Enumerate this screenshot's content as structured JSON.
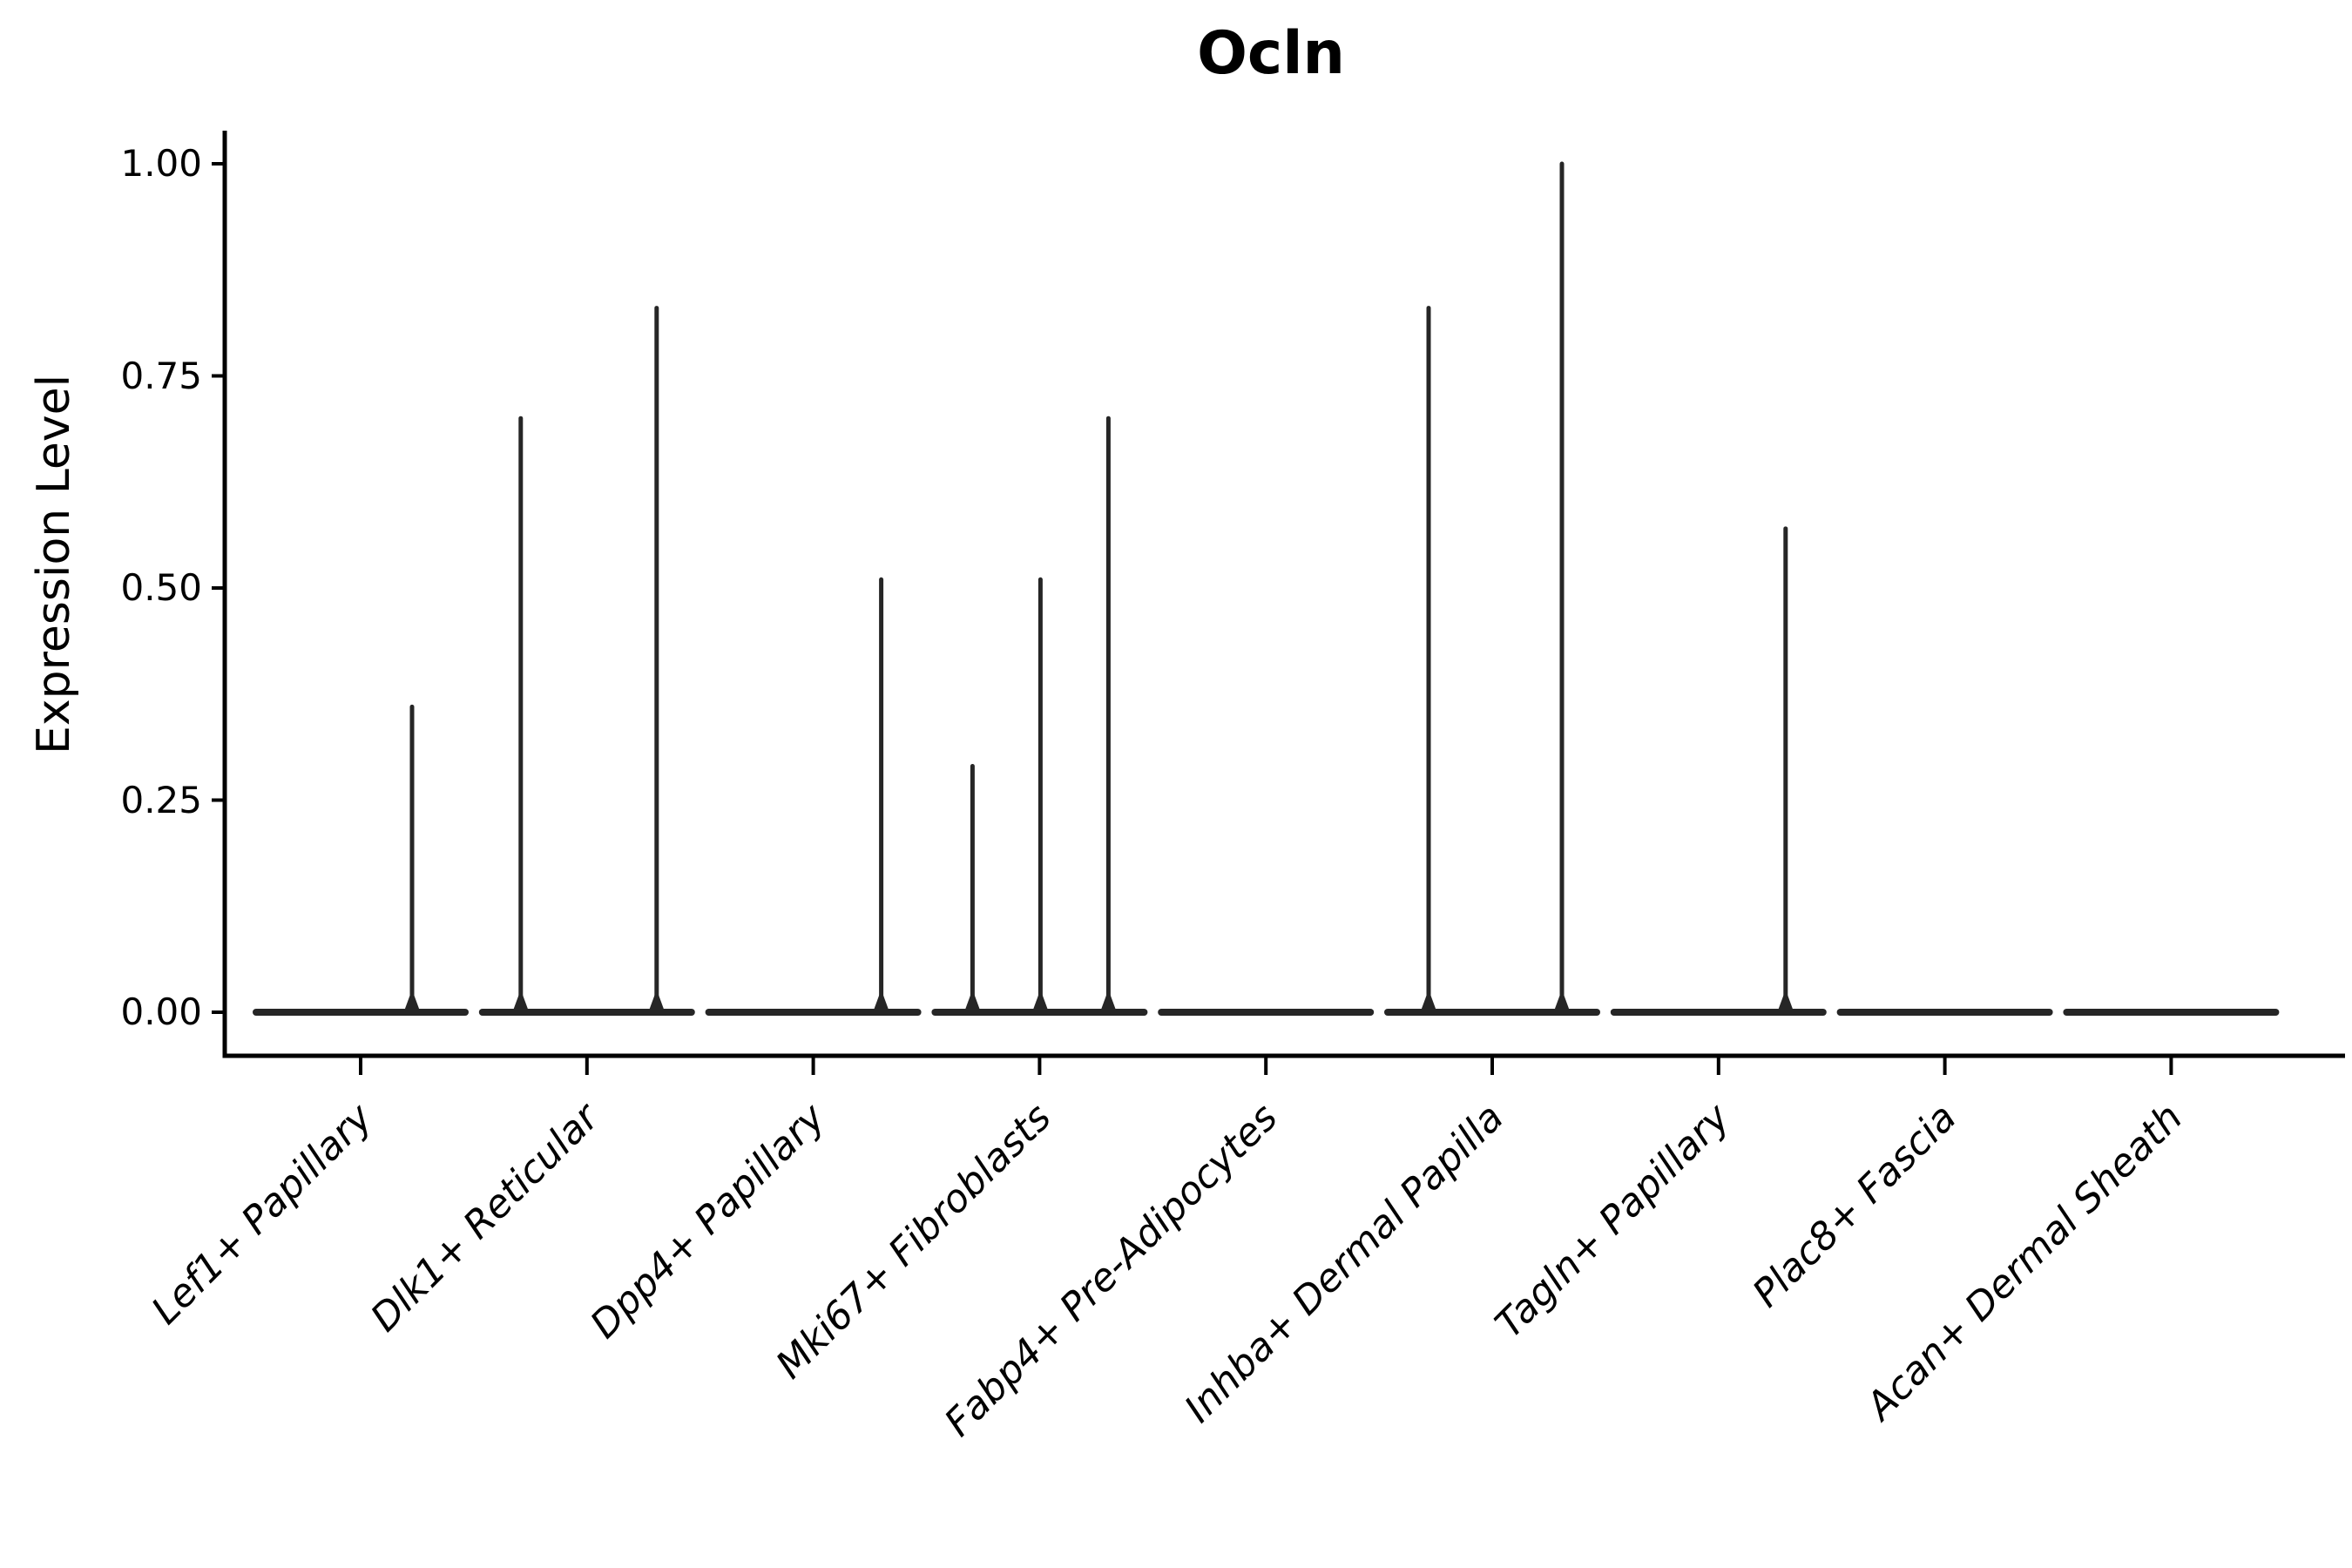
{
  "figure": {
    "background": "#ffffff"
  },
  "chart_data": {
    "type": "violin",
    "title": "Ocln",
    "ylabel": "Expression Level",
    "xlabel": "",
    "ylim": [
      0,
      1.05
    ],
    "grid": false,
    "legend": null,
    "colors": {
      "violin": "#262626",
      "axis": "#000000",
      "text": "#000000"
    },
    "y_ticks": [
      {
        "label": "0.00",
        "value": 0.0
      },
      {
        "label": "0.25",
        "value": 0.25
      },
      {
        "label": "0.50",
        "value": 0.5
      },
      {
        "label": "0.75",
        "value": 0.75
      },
      {
        "label": "1.00",
        "value": 1.0
      }
    ],
    "categories": [
      "Lef1+ Papillary",
      "Dlk1+ Reticular",
      "Dpp4+ Papillary",
      "Mki67+ Fibroblasts",
      "Fabp4+ Pre-Adipocytes",
      "Inhba+ Dermal Papilla",
      "Tagln+ Papillary",
      "Plac8+ Fascia",
      "Acan+ Dermal Sheath"
    ],
    "violins": [
      {
        "category": "Lef1+ Papillary",
        "baseline_value": 0,
        "spikes": [
          {
            "dx": 59,
            "value": 0.36
          }
        ]
      },
      {
        "category": "Dlk1+ Reticular",
        "baseline_value": 0,
        "spikes": [
          {
            "dx": -76,
            "value": 0.7
          },
          {
            "dx": 80,
            "value": 0.83
          }
        ]
      },
      {
        "category": "Dpp4+ Papillary",
        "baseline_value": 0,
        "spikes": [
          {
            "dx": 78,
            "value": 0.51
          }
        ]
      },
      {
        "category": "Mki67+ Fibroblasts",
        "baseline_value": 0,
        "spikes": [
          {
            "dx": -77,
            "value": 0.29
          },
          {
            "dx": 1,
            "value": 0.51
          },
          {
            "dx": 79,
            "value": 0.7
          }
        ]
      },
      {
        "category": "Fabp4+ Pre-Adipocytes",
        "baseline_value": 0,
        "spikes": []
      },
      {
        "category": "Inhba+ Dermal Papilla",
        "baseline_value": 0,
        "spikes": [
          {
            "dx": -73,
            "value": 0.83
          },
          {
            "dx": 80,
            "value": 1.0
          }
        ]
      },
      {
        "category": "Tagln+ Papillary",
        "baseline_value": 0,
        "spikes": [
          {
            "dx": 77,
            "value": 0.57
          }
        ]
      },
      {
        "category": "Plac8+ Fascia",
        "baseline_value": 0,
        "spikes": []
      },
      {
        "category": "Acan+ Dermal Sheath",
        "baseline_value": 0,
        "spikes": []
      }
    ]
  }
}
